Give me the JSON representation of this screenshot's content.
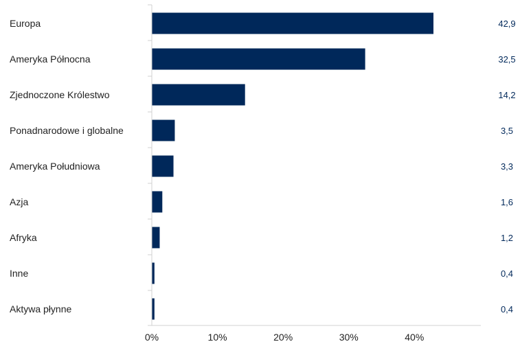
{
  "chart_data": {
    "type": "bar",
    "orientation": "horizontal",
    "categories": [
      "Europa",
      "Ameryka Północna",
      "Zjednoczone Królestwo",
      "Ponadnarodowe i globalne",
      "Ameryka Południowa",
      "Azja",
      "Afryka",
      "Inne",
      "Aktywa płynne"
    ],
    "values": [
      42.9,
      32.5,
      14.2,
      3.5,
      3.3,
      1.6,
      1.2,
      0.4,
      0.4
    ],
    "value_labels": [
      "42,9",
      "32,5",
      "14,2",
      "3,5",
      "3,3",
      "1,6",
      "1,2",
      "0,4",
      "0,4"
    ],
    "x_ticks": [
      0,
      10,
      20,
      30,
      40
    ],
    "x_tick_labels": [
      "0%",
      "10%",
      "20%",
      "30%",
      "40%"
    ],
    "xlim": [
      0,
      50
    ],
    "grid": false,
    "legend": "none",
    "colors": {
      "bar": "#00285a",
      "value_label": "#00285a",
      "category_label": "#222222",
      "axis": "#d0d0d0",
      "tick_label": "#222222"
    }
  }
}
